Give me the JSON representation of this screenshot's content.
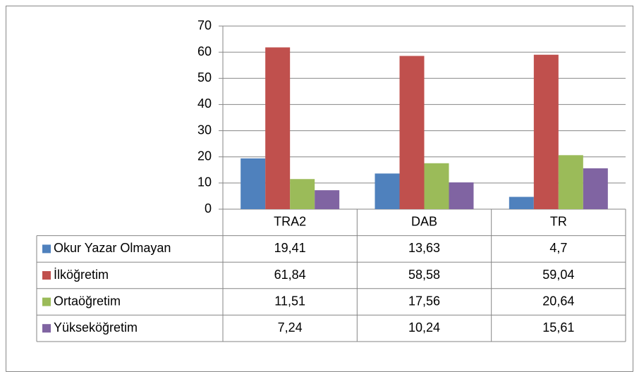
{
  "chart_data": {
    "type": "bar",
    "categories": [
      "TRA2",
      "DAB",
      "TR"
    ],
    "series": [
      {
        "name": "Okur Yazar Olmayan",
        "color": "#4f81bd",
        "values": [
          19.41,
          13.63,
          4.7
        ],
        "value_labels": [
          "19,41",
          "13,63",
          "4,7"
        ]
      },
      {
        "name": "İlköğretim",
        "color": "#c0504d",
        "values": [
          61.84,
          58.58,
          59.04
        ],
        "value_labels": [
          "61,84",
          "58,58",
          "59,04"
        ]
      },
      {
        "name": "Ortaöğretim",
        "color": "#9bbb59",
        "values": [
          11.51,
          17.56,
          20.64
        ],
        "value_labels": [
          "11,51",
          "17,56",
          "20,64"
        ]
      },
      {
        "name": "Yükseköğretim",
        "color": "#8064a2",
        "values": [
          7.24,
          10.24,
          15.61
        ],
        "value_labels": [
          "7,24",
          "10,24",
          "15,61"
        ]
      }
    ],
    "ylim": [
      0,
      70
    ],
    "yticks": [
      0,
      10,
      20,
      30,
      40,
      50,
      60,
      70
    ],
    "grid": true,
    "data_table": true
  }
}
